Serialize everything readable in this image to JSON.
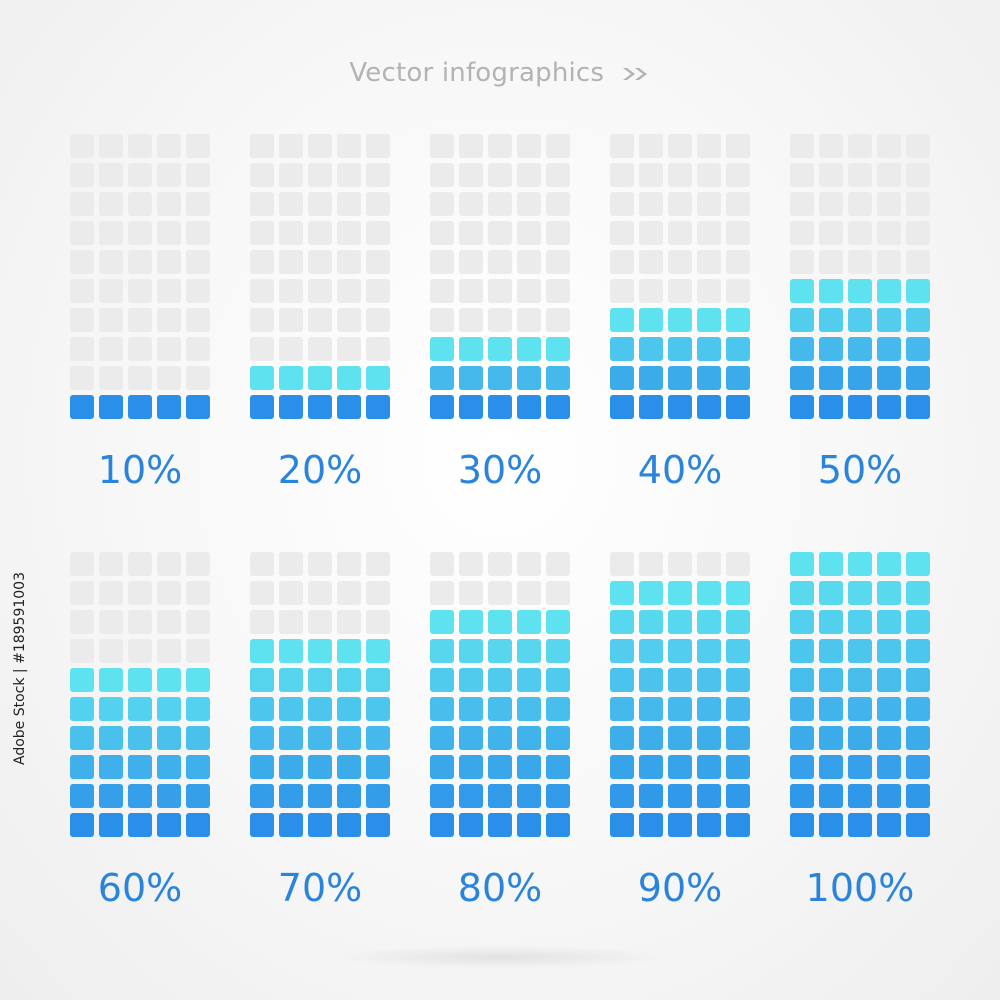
{
  "header": {
    "title": "Vector infographics",
    "arrow_icon": "double-chevron-right-icon"
  },
  "colors": {
    "empty_cell": "#ebebeb",
    "fill_top": "#5fe2ef",
    "fill_bottom": "#2a8fe8",
    "label": "#2a84dc",
    "title": "#b3b3b3"
  },
  "grid": {
    "rows": 10,
    "cols": 5
  },
  "meters": [
    {
      "label": "10%",
      "fill": 0.1
    },
    {
      "label": "20%",
      "fill": 0.2
    },
    {
      "label": "30%",
      "fill": 0.3
    },
    {
      "label": "40%",
      "fill": 0.4
    },
    {
      "label": "50%",
      "fill": 0.5
    },
    {
      "label": "60%",
      "fill": 0.6
    },
    {
      "label": "70%",
      "fill": 0.7
    },
    {
      "label": "80%",
      "fill": 0.8
    },
    {
      "label": "90%",
      "fill": 0.9
    },
    {
      "label": "100%",
      "fill": 1.0
    }
  ],
  "stock_id": "Adobe Stock | #189591003"
}
